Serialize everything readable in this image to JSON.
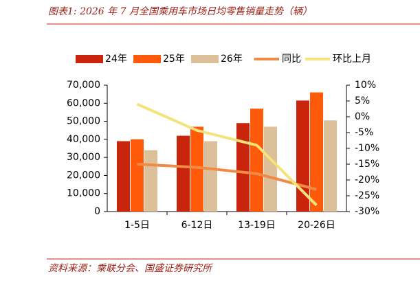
{
  "chart_data": {
    "type": "bar",
    "title": "图表1:  2026 年 7 月全国乘用车市场日均零售销量走势（辆）",
    "source": "资料来源：乘联分会、国盛证券研究所",
    "categories": [
      "1-5日",
      "6-12日",
      "13-19日",
      "20-26日"
    ],
    "series": [
      {
        "name": "24年",
        "type": "bar",
        "color": "#c8250c",
        "values": [
          39000,
          42000,
          49000,
          61500
        ]
      },
      {
        "name": "25年",
        "type": "bar",
        "color": "#ff5a0a",
        "values": [
          40000,
          47000,
          57000,
          66000
        ]
      },
      {
        "name": "26年",
        "type": "bar",
        "color": "#dcc09a",
        "values": [
          34000,
          39000,
          47000,
          50500
        ]
      },
      {
        "name": "同比",
        "type": "line",
        "axis": "y2",
        "color": "#f08a45",
        "values": [
          -15,
          -16,
          -18,
          -23
        ]
      },
      {
        "name": "环比上月",
        "type": "line",
        "axis": "y2",
        "color": "#f5e27a",
        "values": [
          4,
          -4.3,
          -9,
          -28
        ]
      }
    ],
    "ylim": [
      0,
      70000
    ],
    "yticks": [
      0,
      {
        "value": 10000,
        "label": "10,000"
      },
      {
        "value": 20000,
        "label": "20,000"
      },
      {
        "value": 30000,
        "label": "30,000"
      },
      {
        "value": 40000,
        "label": "40,000"
      },
      {
        "value": 50000,
        "label": "50,000"
      },
      {
        "value": 60000,
        "label": "60,000"
      },
      {
        "value": 70000,
        "label": "70,000"
      }
    ],
    "y2lim": [
      -30,
      10
    ],
    "y2ticks": [
      {
        "value": -30,
        "label": "-30%"
      },
      {
        "value": -25,
        "label": "-25%"
      },
      {
        "value": -20,
        "label": "-20%"
      },
      {
        "value": -15,
        "label": "-15%"
      },
      {
        "value": -10,
        "label": "-10%"
      },
      {
        "value": -5,
        "label": "-5%"
      },
      {
        "value": 0,
        "label": "0%"
      },
      {
        "value": 5,
        "label": "5%"
      },
      {
        "value": 10,
        "label": "10%"
      }
    ]
  }
}
